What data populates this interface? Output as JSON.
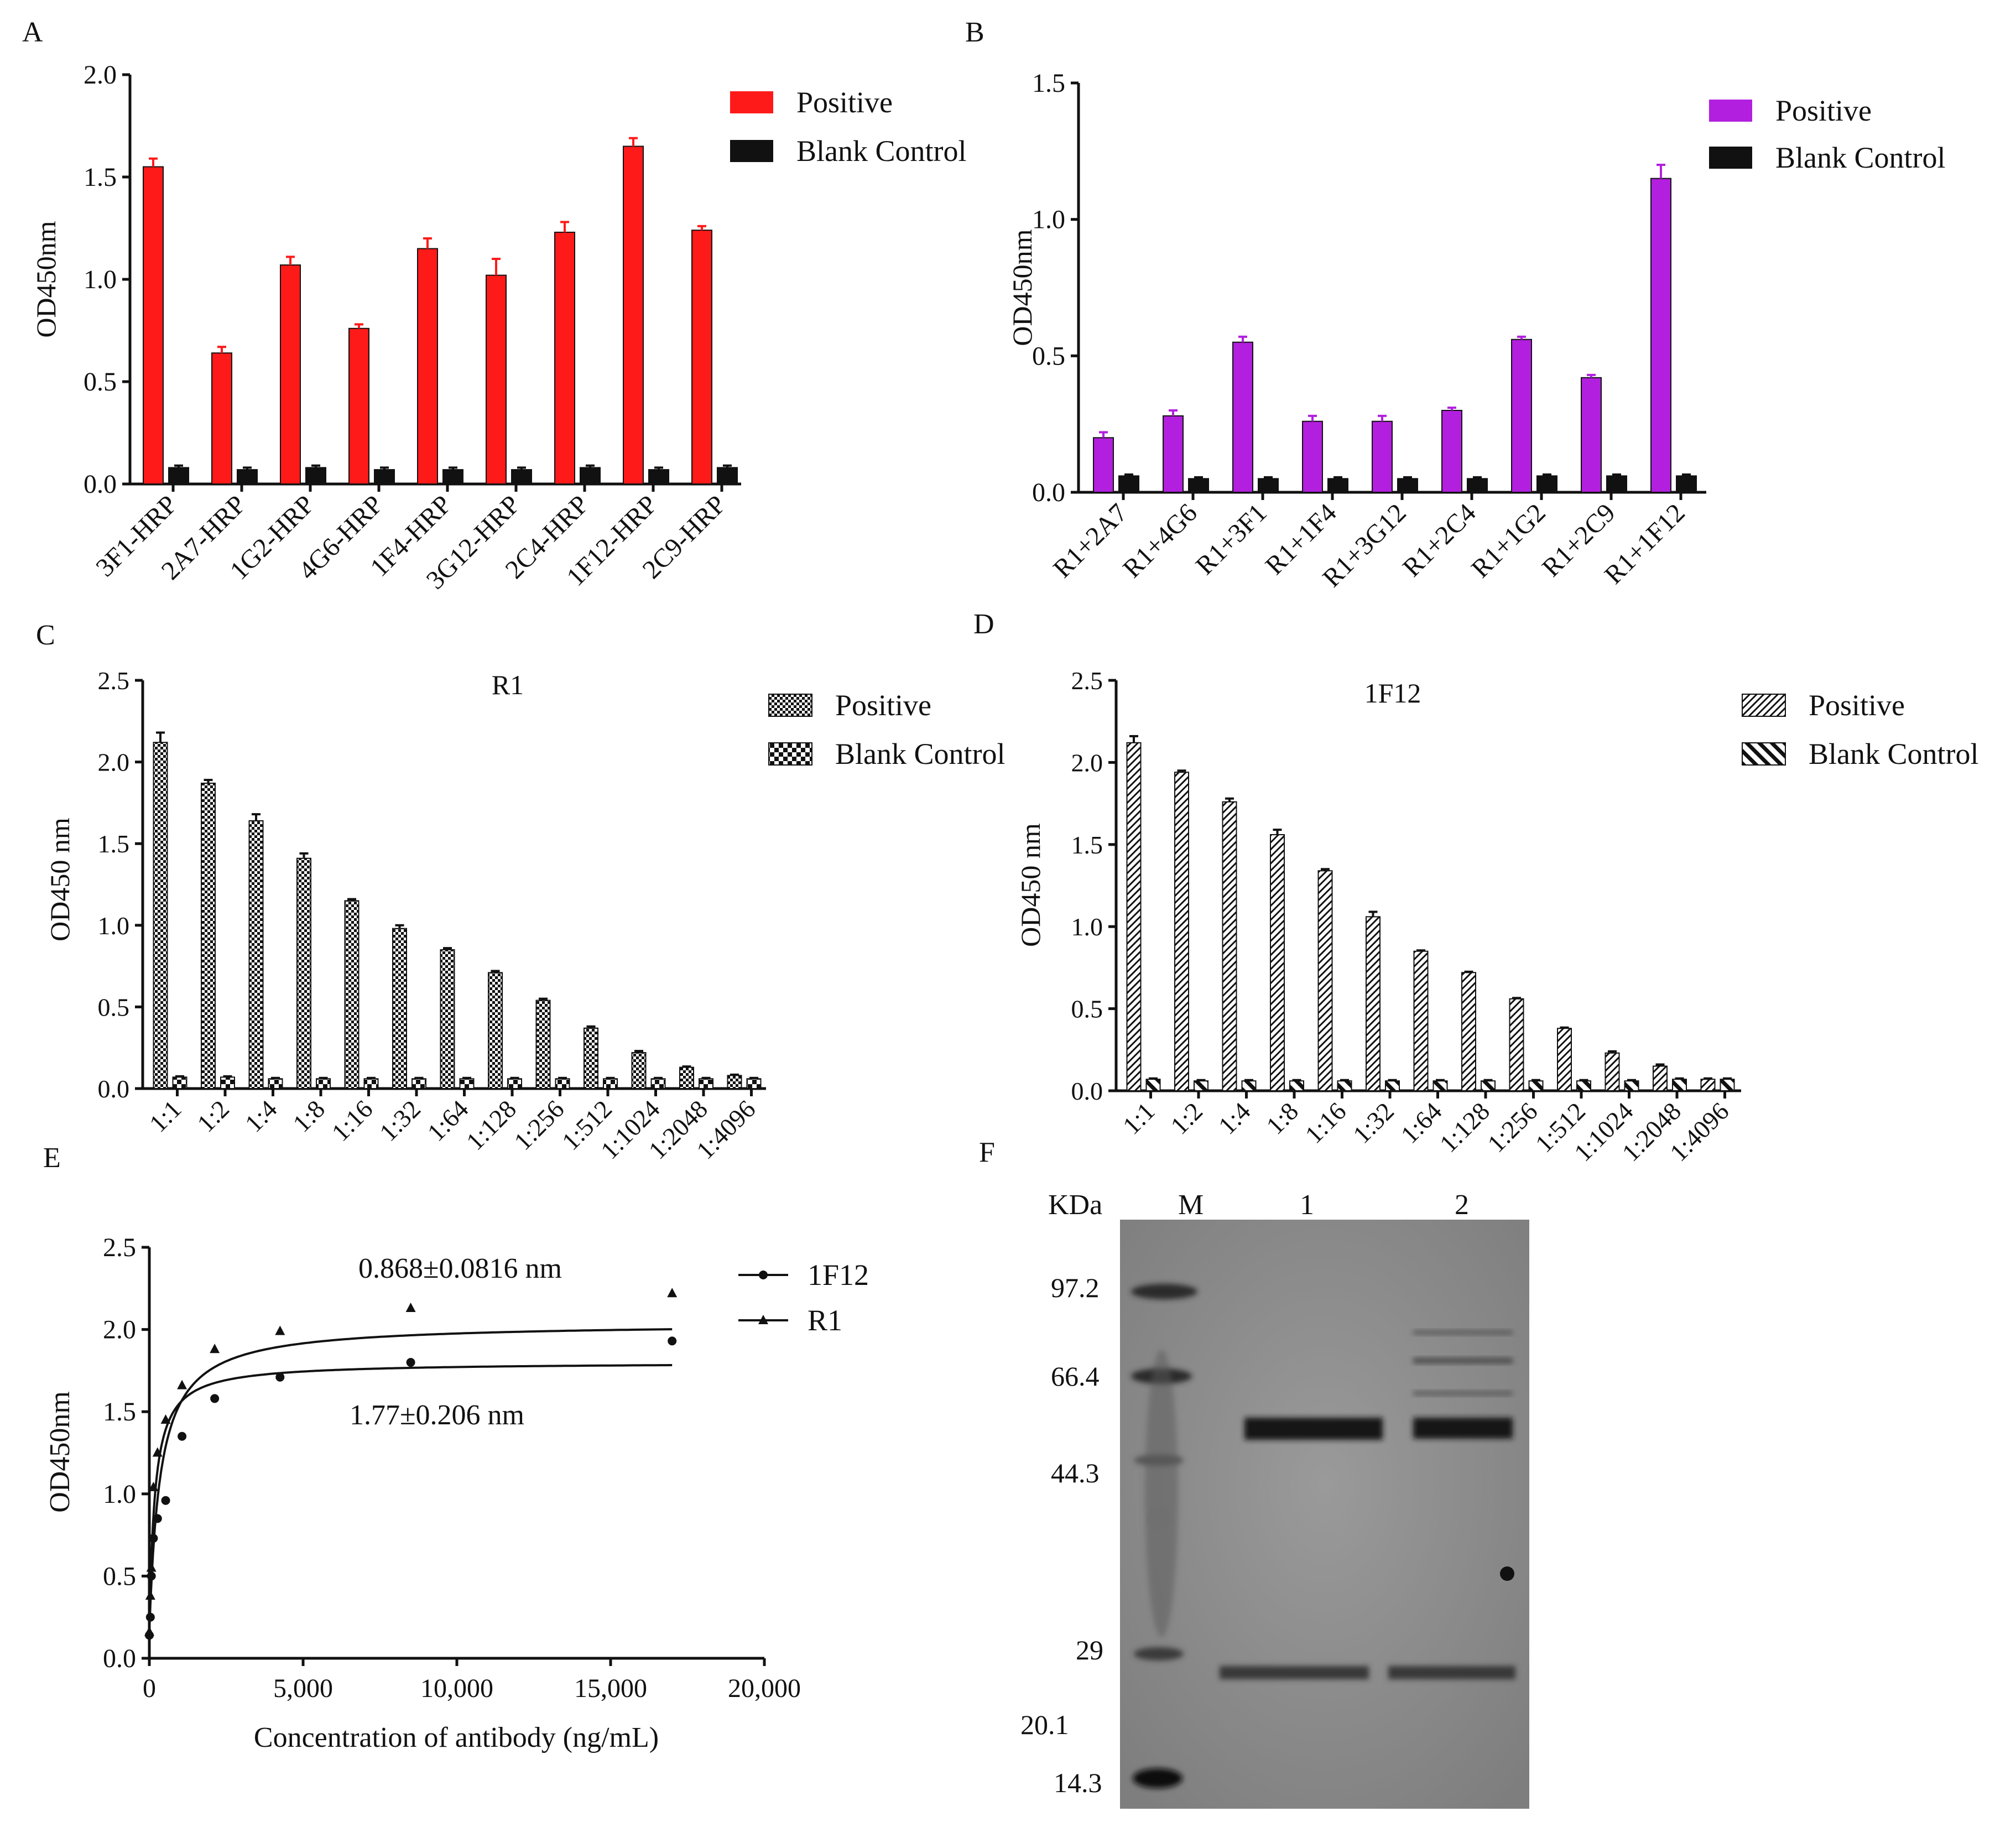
{
  "chart_data": [
    {
      "panel": "A",
      "type": "bar",
      "title": "",
      "xlabel": "",
      "ylabel": "OD450nm",
      "ylim": [
        0,
        2.0
      ],
      "yticks": [
        "0.0",
        "0.5",
        "1.0",
        "1.5",
        "2.0"
      ],
      "categories": [
        "3F1-HRP",
        "2A7-HRP",
        "1G2-HRP",
        "4G6-HRP",
        "1F4-HRP",
        "3G12-HRP",
        "2C4-HRP",
        "1F12-HRP",
        "2C9-HRP"
      ],
      "series": [
        {
          "name": "Positive",
          "color": "#ff1a1a",
          "fill": "solid",
          "values": [
            1.55,
            0.64,
            1.07,
            0.76,
            1.15,
            1.02,
            1.23,
            1.65,
            1.24
          ],
          "errors": [
            0.04,
            0.03,
            0.04,
            0.02,
            0.05,
            0.08,
            0.05,
            0.04,
            0.02
          ]
        },
        {
          "name": "Blank Control",
          "color": "#111111",
          "fill": "solid",
          "values": [
            0.08,
            0.07,
            0.08,
            0.07,
            0.07,
            0.07,
            0.08,
            0.07,
            0.08
          ],
          "errors": [
            0.01,
            0.01,
            0.01,
            0.01,
            0.01,
            0.01,
            0.01,
            0.01,
            0.01
          ]
        }
      ],
      "legend_position": "top-right"
    },
    {
      "panel": "B",
      "type": "bar",
      "title": "",
      "xlabel": "",
      "ylabel": "OD450nm",
      "ylim": [
        0,
        1.5
      ],
      "yticks": [
        "0.0",
        "0.5",
        "1.0",
        "1.5"
      ],
      "categories": [
        "R1+2A7",
        "R1+4G6",
        "R1+3F1",
        "R1+1F4",
        "R1+3G12",
        "R1+2C4",
        "R1+1G2",
        "R1+2C9",
        "R1+1F12"
      ],
      "series": [
        {
          "name": "Positive",
          "color": "#b21fde",
          "fill": "solid",
          "values": [
            0.2,
            0.28,
            0.55,
            0.26,
            0.26,
            0.3,
            0.56,
            0.42,
            1.15
          ],
          "errors": [
            0.02,
            0.02,
            0.02,
            0.02,
            0.02,
            0.01,
            0.01,
            0.01,
            0.05
          ]
        },
        {
          "name": "Blank Control",
          "color": "#111111",
          "fill": "solid",
          "values": [
            0.06,
            0.05,
            0.05,
            0.05,
            0.05,
            0.05,
            0.06,
            0.06,
            0.06
          ],
          "errors": [
            0.005,
            0.005,
            0.005,
            0.005,
            0.005,
            0.005,
            0.005,
            0.005,
            0.005
          ]
        }
      ],
      "legend_position": "top-right"
    },
    {
      "panel": "C",
      "type": "bar",
      "title": "R1",
      "xlabel": "",
      "ylabel": "OD450 nm",
      "ylim": [
        0,
        2.5
      ],
      "yticks": [
        "0.0",
        "0.5",
        "1.0",
        "1.5",
        "2.0",
        "2.5"
      ],
      "categories": [
        "1:1",
        "1:2",
        "1:4",
        "1:8",
        "1:16",
        "1:32",
        "1:64",
        "1:128",
        "1:256",
        "1:512",
        "1:1024",
        "1:2048",
        "1:4096"
      ],
      "series": [
        {
          "name": "Positive",
          "color": "#111111",
          "fill": "checker-fine",
          "values": [
            2.12,
            1.87,
            1.64,
            1.41,
            1.15,
            0.98,
            0.85,
            0.71,
            0.54,
            0.37,
            0.22,
            0.13,
            0.08
          ],
          "errors": [
            0.06,
            0.02,
            0.04,
            0.03,
            0.01,
            0.02,
            0.01,
            0.01,
            0.01,
            0.01,
            0.01,
            0.005,
            0.005
          ]
        },
        {
          "name": "Blank Control",
          "color": "#111111",
          "fill": "checker-coarse",
          "values": [
            0.07,
            0.07,
            0.06,
            0.06,
            0.06,
            0.06,
            0.06,
            0.06,
            0.06,
            0.06,
            0.06,
            0.06,
            0.06
          ],
          "errors": [
            0.005,
            0.005,
            0.005,
            0.005,
            0.005,
            0.005,
            0.005,
            0.005,
            0.005,
            0.005,
            0.005,
            0.005,
            0.005
          ]
        }
      ],
      "legend_position": "top-right"
    },
    {
      "panel": "D",
      "type": "bar",
      "title": "1F12",
      "xlabel": "",
      "ylabel": "OD450 nm",
      "ylim": [
        0,
        2.5
      ],
      "yticks": [
        "0.0",
        "0.5",
        "1.0",
        "1.5",
        "2.0",
        "2.5"
      ],
      "categories": [
        "1:1",
        "1:2",
        "1:4",
        "1:8",
        "1:16",
        "1:32",
        "1:64",
        "1:128",
        "1:256",
        "1:512",
        "1:1024",
        "1:2048",
        "1:4096"
      ],
      "series": [
        {
          "name": "Positive",
          "color": "#111111",
          "fill": "hatch-fine",
          "values": [
            2.12,
            1.94,
            1.76,
            1.56,
            1.34,
            1.06,
            0.85,
            0.72,
            0.56,
            0.38,
            0.23,
            0.15,
            0.07
          ],
          "errors": [
            0.04,
            0.01,
            0.02,
            0.03,
            0.01,
            0.03,
            0.005,
            0.005,
            0.005,
            0.005,
            0.01,
            0.01,
            0.005
          ]
        },
        {
          "name": "Blank Control",
          "color": "#111111",
          "fill": "hatch-coarse",
          "values": [
            0.07,
            0.06,
            0.06,
            0.06,
            0.06,
            0.06,
            0.06,
            0.06,
            0.06,
            0.06,
            0.06,
            0.07,
            0.07
          ],
          "errors": [
            0.005,
            0.005,
            0.005,
            0.005,
            0.005,
            0.005,
            0.005,
            0.005,
            0.005,
            0.005,
            0.005,
            0.005,
            0.005
          ]
        }
      ],
      "legend_position": "top-right"
    },
    {
      "panel": "E",
      "type": "scatter",
      "title": "",
      "xlabel": "Concentration of antibody (ng/mL)",
      "ylabel": "OD450nm",
      "xlim": [
        0,
        20000
      ],
      "ylim": [
        0,
        2.5
      ],
      "xticks": [
        "0",
        "5,000",
        "10,000",
        "15,000",
        "20,000"
      ],
      "yticks": [
        "0.0",
        "0.5",
        "1.0",
        "1.5",
        "2.0",
        "2.5"
      ],
      "series": [
        {
          "name": "1F12",
          "marker": "circle",
          "fit_kd": 0.868,
          "fit_bmax": 1.8,
          "x": [
            0,
            33,
            66,
            133,
            266,
            531,
            1063,
            2125,
            4250,
            8500,
            17000
          ],
          "y": [
            0.14,
            0.25,
            0.5,
            0.73,
            0.85,
            0.96,
            1.35,
            1.58,
            1.71,
            1.8,
            1.93
          ]
        },
        {
          "name": "R1",
          "marker": "triangle",
          "fit_kd": 1.77,
          "fit_bmax": 2.04,
          "x": [
            0,
            33,
            66,
            133,
            266,
            531,
            1063,
            2125,
            4250,
            8500,
            17000
          ],
          "y": [
            0.16,
            0.38,
            0.55,
            1.04,
            1.25,
            1.45,
            1.66,
            1.88,
            1.99,
            2.13,
            2.22
          ]
        }
      ],
      "annotations": [
        "0.868±0.0816 nm",
        "1.77±0.206 nm"
      ],
      "legend_position": "top-right"
    }
  ],
  "panel_labels": {
    "A": "A",
    "B": "B",
    "C": "C",
    "D": "D",
    "E": "E",
    "F": "F"
  },
  "gel": {
    "unit_label": "KDa",
    "lane_labels": [
      "M",
      "1",
      "2"
    ],
    "markers": [
      "97.2",
      "66.4",
      "44.3",
      "29",
      "20.1",
      "14.3"
    ]
  }
}
